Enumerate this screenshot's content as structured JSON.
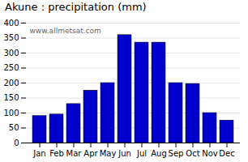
{
  "chart_data": {
    "type": "bar",
    "title": "Akune : precipitation (mm)",
    "categories": [
      "Jan",
      "Feb",
      "Mar",
      "Apr",
      "May",
      "Jun",
      "Jul",
      "Aug",
      "Sep",
      "Oct",
      "Nov",
      "Dec"
    ],
    "values": [
      90,
      95,
      130,
      175,
      200,
      360,
      335,
      335,
      200,
      197,
      100,
      75
    ],
    "color": "#0000cc",
    "ylim": [
      0,
      400
    ],
    "yticks": [
      0,
      50,
      100,
      150,
      200,
      250,
      300,
      350,
      400
    ],
    "grid": true,
    "annotations": [
      "www.allmetsat.com"
    ]
  }
}
